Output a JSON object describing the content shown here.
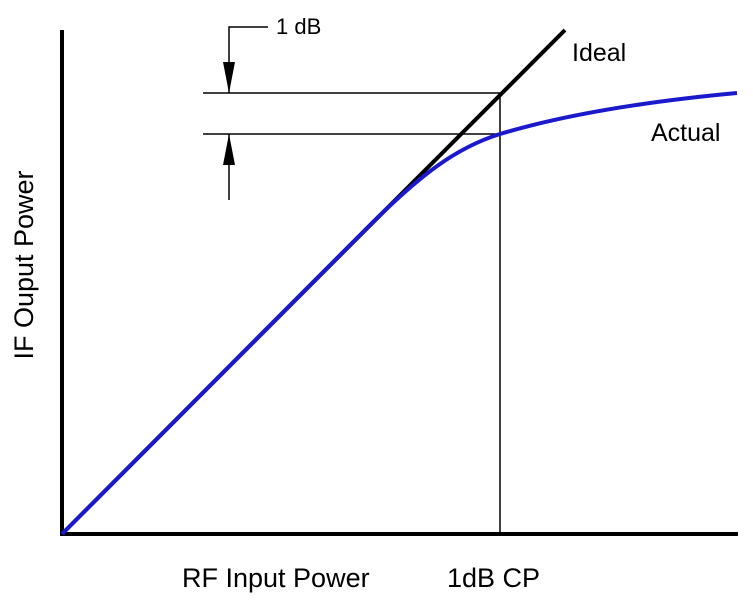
{
  "diagram": {
    "ylabel": "IF Ouput Power",
    "xlabel": "RF Input Power",
    "cp_label": "1dB CP",
    "ideal_label": "Ideal",
    "actual_label": "Actual",
    "delta_label": "1 dB"
  },
  "colors": {
    "ideal": "#000000",
    "actual": "#1a1acc",
    "axes": "#000000",
    "guides": "#000000"
  }
}
